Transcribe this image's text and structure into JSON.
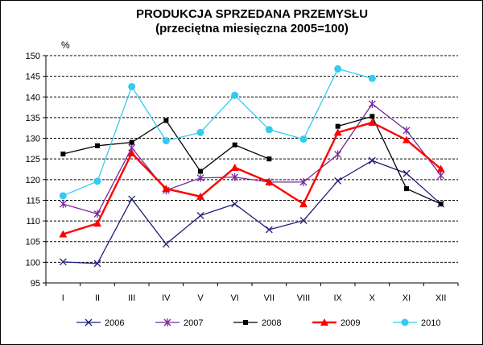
{
  "chart_data": {
    "type": "line",
    "title": "PRODUKCJA SPRZEDANA PRZEMYSŁU",
    "subtitle": "(przeciętna miesięczna 2005=100)",
    "ylabel": "%",
    "xlabel": "",
    "ylim": [
      95,
      150
    ],
    "yticks": [
      95,
      100,
      105,
      110,
      115,
      120,
      125,
      130,
      135,
      140,
      145,
      150
    ],
    "grid": "horizontal dashed",
    "legend_position": "bottom",
    "categories": [
      "I",
      "II",
      "III",
      "IV",
      "V",
      "VI",
      "VII",
      "VIII",
      "IX",
      "X",
      "XI",
      "XII"
    ],
    "series": [
      {
        "name": "2006",
        "color": "#1f1f7a",
        "marker": "x",
        "values": [
          100.1,
          99.7,
          115.3,
          104.4,
          111.3,
          114.1,
          107.9,
          110.1,
          119.7,
          124.6,
          121.5,
          114.1
        ]
      },
      {
        "name": "2007",
        "color": "#7a2a9a",
        "marker": "star",
        "values": [
          114.1,
          111.7,
          127.7,
          117.4,
          120.4,
          120.6,
          119.4,
          119.4,
          126.1,
          138.3,
          131.9,
          121.0
        ]
      },
      {
        "name": "2008",
        "color": "#000000",
        "marker": "square",
        "values": [
          126.2,
          128.2,
          129.0,
          134.3,
          122.0,
          128.4,
          125.0,
          null,
          132.9,
          135.3,
          117.8,
          114.1
        ]
      },
      {
        "name": "2009",
        "color": "#ff0000",
        "marker": "triangle",
        "values": [
          106.8,
          109.4,
          126.4,
          117.8,
          115.9,
          122.9,
          119.4,
          114.1,
          131.4,
          133.8,
          129.6,
          122.6
        ]
      },
      {
        "name": "2010",
        "color": "#33ccee",
        "marker": "circle",
        "values": [
          116.1,
          119.6,
          142.5,
          129.4,
          131.4,
          140.4,
          132.1,
          129.8,
          146.8,
          144.5,
          null,
          null
        ]
      }
    ]
  }
}
